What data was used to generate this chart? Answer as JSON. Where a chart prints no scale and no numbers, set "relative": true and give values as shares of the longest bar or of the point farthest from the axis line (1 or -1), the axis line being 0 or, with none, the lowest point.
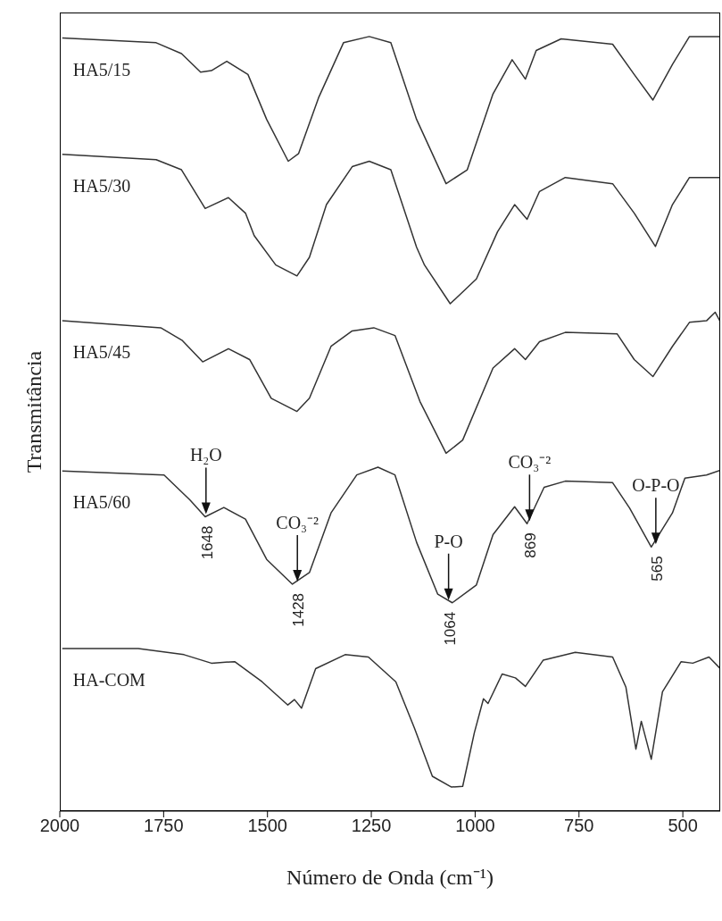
{
  "chart_data": {
    "type": "line",
    "relative": true,
    "xlabel": "Número de Onda (cm⁻¹)",
    "ylabel": "Transmitância",
    "xlim": [
      2000,
      410
    ],
    "xticks": [
      2000,
      1750,
      1500,
      1250,
      1000,
      750,
      500
    ],
    "grid": false,
    "legend": false,
    "marker": "none",
    "line_style": "solid",
    "series": [
      {
        "name": "HA5/15",
        "color": "#333333",
        "x": [
          1994,
          1768,
          1707,
          1661,
          1635,
          1598,
          1547,
          1502,
          1450,
          1425,
          1377,
          1317,
          1255,
          1203,
          1141,
          1070,
          1019,
          957,
          911,
          879,
          853,
          793,
          669,
          617,
          572,
          525,
          484,
          410
        ],
        "values": [
          0.998,
          0.992,
          0.978,
          0.954,
          0.956,
          0.968,
          0.951,
          0.893,
          0.839,
          0.849,
          0.921,
          0.992,
          1.0,
          0.992,
          0.893,
          0.81,
          0.828,
          0.926,
          0.97,
          0.945,
          0.982,
          0.997,
          0.99,
          0.951,
          0.918,
          0.964,
          1.0,
          1.0
        ]
      },
      {
        "name": "HA5/30",
        "color": "#333333",
        "x": [
          1994,
          1768,
          1707,
          1650,
          1594,
          1553,
          1532,
          1480,
          1429,
          1399,
          1358,
          1296,
          1255,
          1203,
          1141,
          1122,
          1060,
          997,
          946,
          905,
          875,
          845,
          783,
          669,
          617,
          566,
          525,
          484,
          410
        ],
        "values": [
          0.848,
          0.841,
          0.828,
          0.778,
          0.792,
          0.772,
          0.743,
          0.705,
          0.691,
          0.715,
          0.783,
          0.832,
          0.839,
          0.828,
          0.728,
          0.705,
          0.655,
          0.687,
          0.748,
          0.783,
          0.764,
          0.8,
          0.818,
          0.81,
          0.772,
          0.729,
          0.783,
          0.818,
          0.818
        ]
      },
      {
        "name": "HA5/45",
        "color": "#333333",
        "x": [
          1994,
          1757,
          1706,
          1656,
          1594,
          1543,
          1491,
          1429,
          1399,
          1347,
          1296,
          1244,
          1193,
          1133,
          1070,
          1030,
          957,
          905,
          879,
          845,
          783,
          658,
          617,
          572,
          525,
          484,
          443,
          422,
          410
        ],
        "values": [
          0.633,
          0.624,
          0.608,
          0.58,
          0.597,
          0.583,
          0.533,
          0.516,
          0.533,
          0.6,
          0.62,
          0.624,
          0.614,
          0.529,
          0.462,
          0.479,
          0.572,
          0.597,
          0.583,
          0.606,
          0.618,
          0.616,
          0.583,
          0.561,
          0.6,
          0.631,
          0.633,
          0.644,
          0.632
        ]
      },
      {
        "name": "HA5/60",
        "color": "#333333",
        "x": [
          1994,
          1749,
          1687,
          1650,
          1605,
          1553,
          1502,
          1440,
          1399,
          1347,
          1285,
          1234,
          1193,
          1141,
          1090,
          1055,
          997,
          957,
          905,
          875,
          834,
          783,
          669,
          628,
          576,
          525,
          495,
          443,
          410
        ],
        "values": [
          0.439,
          0.434,
          0.402,
          0.38,
          0.392,
          0.377,
          0.325,
          0.293,
          0.308,
          0.385,
          0.434,
          0.444,
          0.434,
          0.347,
          0.28,
          0.269,
          0.292,
          0.357,
          0.393,
          0.371,
          0.418,
          0.426,
          0.424,
          0.391,
          0.341,
          0.385,
          0.43,
          0.434,
          0.44
        ]
      },
      {
        "name": "HA-COM",
        "color": "#333333",
        "x": [
          1994,
          1811,
          1701,
          1635,
          1579,
          1513,
          1451,
          1435,
          1418,
          1384,
          1313,
          1257,
          1191,
          1146,
          1103,
          1057,
          1030,
          1002,
          980,
          969,
          935,
          903,
          879,
          836,
          759,
          669,
          637,
          613,
          600,
          576,
          549,
          504,
          476,
          437,
          410
        ],
        "values": [
          0.21,
          0.21,
          0.202,
          0.191,
          0.193,
          0.167,
          0.137,
          0.144,
          0.133,
          0.184,
          0.202,
          0.199,
          0.167,
          0.107,
          0.045,
          0.031,
          0.032,
          0.101,
          0.145,
          0.139,
          0.177,
          0.172,
          0.161,
          0.195,
          0.205,
          0.199,
          0.16,
          0.08,
          0.116,
          0.067,
          0.154,
          0.193,
          0.191,
          0.199,
          0.184
        ]
      }
    ],
    "annotations": [
      {
        "text": "H₂O",
        "x": 1648,
        "y": 0.38
      },
      {
        "text": "1648",
        "x": 1648,
        "y": 0.38
      },
      {
        "text": "CO₃⁻²",
        "x": 1428,
        "y": 0.293
      },
      {
        "text": "1428",
        "x": 1428,
        "y": 0.293
      },
      {
        "text": "P-O",
        "x": 1064,
        "y": 0.269
      },
      {
        "text": "1064",
        "x": 1064,
        "y": 0.269
      },
      {
        "text": "CO₃⁻²",
        "x": 869,
        "y": 0.371
      },
      {
        "text": "869",
        "x": 869,
        "y": 0.371
      },
      {
        "text": "O-P-O",
        "x": 565,
        "y": 0.341
      },
      {
        "text": "565",
        "x": 565,
        "y": 0.341
      }
    ]
  }
}
